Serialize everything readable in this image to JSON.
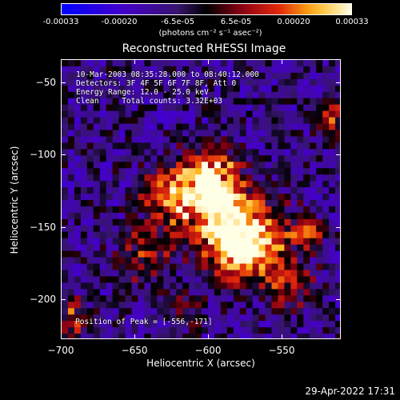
{
  "colorbar": {
    "ticks": [
      "-0.00033",
      "-0.00020",
      "-6.5e-05",
      "6.5e-05",
      "0.00020",
      "0.00033"
    ],
    "unit": "(photons cm⁻² s⁻¹ asec⁻²)",
    "colors": {
      "low": "#0000ff",
      "mid_low": "#3a0f8f",
      "zero": "#000000",
      "mid_high": "#d01c0c",
      "high": "#ffff40",
      "max": "#ffffff"
    }
  },
  "title": "Reconstructed RHESSI Image",
  "info_lines": [
    "10-Mar-2003 08:35:28.000 to 08:40:12.000",
    "Detectors: 3F 4F 5F 6F 7F 8F, Att 0",
    "Energy Range: 12.0 - 25.0 keV",
    "Clean     Total counts: 3.32E+03"
  ],
  "peak_label": "Position of Peak = [-556,-171]",
  "x_axis": {
    "label": "Heliocentric X (arcsec)",
    "ticks": [
      "−700",
      "−650",
      "−600",
      "−550"
    ],
    "range": [
      -700,
      -510
    ]
  },
  "y_axis": {
    "label": "Heliocentric Y (arcsec)",
    "ticks": [
      "−50",
      "−100",
      "−150",
      "−200"
    ],
    "range": [
      -227,
      -37
    ]
  },
  "datestamp": "29-Apr-2022 17:31"
}
